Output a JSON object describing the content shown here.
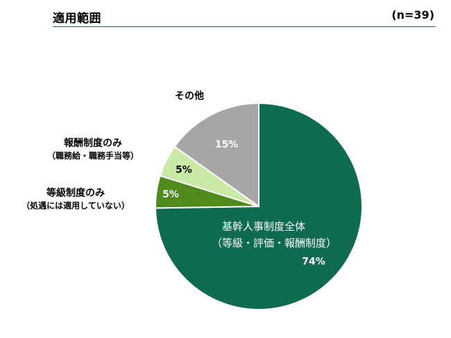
{
  "header": {
    "title": "適用範囲",
    "n_label": "(n=39)"
  },
  "chart_data": {
    "type": "pie",
    "title": "適用範囲",
    "n": 39,
    "slices": [
      {
        "label": "基幹人事制度全体",
        "sublabel": "（等級・評価・報酬制度）",
        "value": 74,
        "value_label": "74%",
        "color": "#0e6b4f"
      },
      {
        "label": "等級制度のみ",
        "sublabel": "（処遇には適用していない）",
        "value": 5,
        "value_label": "5%",
        "color": "#4f8a1f"
      },
      {
        "label": "報酬制度のみ",
        "sublabel": "（職務給・職務手当等）",
        "value": 5,
        "value_label": "5%",
        "color": "#c9eaa4"
      },
      {
        "label": "その他",
        "sublabel": "",
        "value": 15,
        "value_label": "15%",
        "color": "#a6a6a6"
      }
    ]
  }
}
